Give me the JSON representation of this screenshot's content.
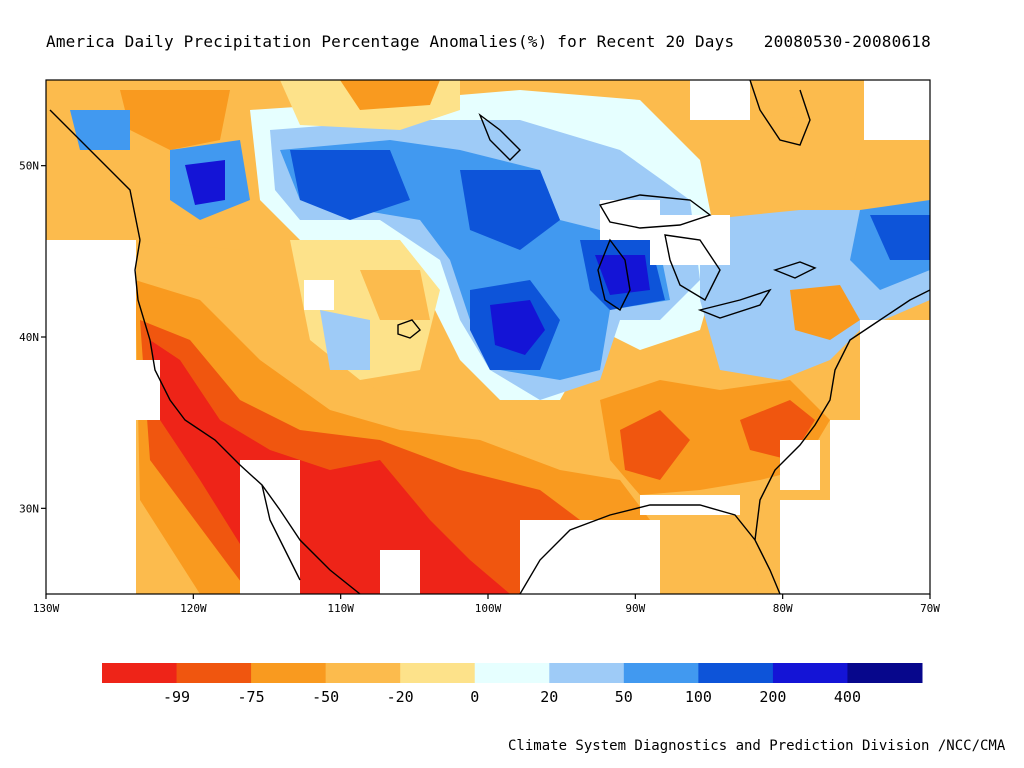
{
  "title": "America Daily Precipitation Percentage Anomalies(%) for Recent 20 Days   20080530-20080618",
  "credit": "Climate System Diagnostics and Prediction Division /NCC/CMA",
  "axes": {
    "lon_ticks": [
      "130W",
      "120W",
      "110W",
      "100W",
      "90W",
      "80W",
      "70W"
    ],
    "lat_ticks": [
      "50N",
      "40N",
      "30N"
    ]
  },
  "colorbar": {
    "colors": [
      "#ee2418",
      "#f0560f",
      "#f99a1f",
      "#fcbb4d",
      "#fde28a",
      "#e6ffff",
      "#9ecbf7",
      "#4199f0",
      "#0d54d9",
      "#1414d6",
      "#07078c"
    ],
    "labels": [
      "-99",
      "-75",
      "-50",
      "-20",
      "0",
      "20",
      "50",
      "100",
      "200",
      "400"
    ]
  },
  "map_data": {
    "lon_range": [
      -130,
      -70
    ],
    "lat_range": [
      25,
      55
    ]
  }
}
